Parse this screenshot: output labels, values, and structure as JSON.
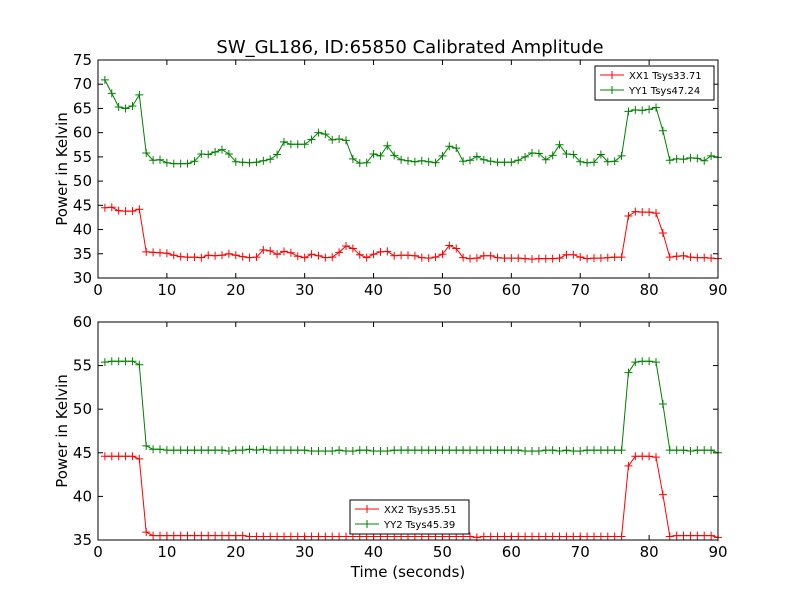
{
  "figure": {
    "title": "SW_GL186, ID:65850 Calibrated Amplitude"
  },
  "chart_data": [
    {
      "type": "line",
      "title": "SW_GL186, ID:65850 Calibrated Amplitude",
      "xlabel": "",
      "ylabel": "Power in Kelvin",
      "xlim": [
        0,
        90
      ],
      "ylim": [
        30,
        75
      ],
      "xticks": [
        0,
        10,
        20,
        30,
        40,
        50,
        60,
        70,
        80,
        90
      ],
      "yticks": [
        30,
        35,
        40,
        45,
        50,
        55,
        60,
        65,
        70,
        75
      ],
      "grid": false,
      "legend": "top-right",
      "marker": "+",
      "x": [
        1,
        2,
        3,
        4,
        5,
        6,
        7,
        8,
        9,
        10,
        11,
        12,
        13,
        14,
        15,
        16,
        17,
        18,
        19,
        20,
        21,
        22,
        23,
        24,
        25,
        26,
        27,
        28,
        29,
        30,
        31,
        32,
        33,
        34,
        35,
        36,
        37,
        38,
        39,
        40,
        41,
        42,
        43,
        44,
        45,
        46,
        47,
        48,
        49,
        50,
        51,
        52,
        53,
        54,
        55,
        56,
        57,
        58,
        59,
        60,
        61,
        62,
        63,
        64,
        65,
        66,
        67,
        68,
        69,
        70,
        71,
        72,
        73,
        74,
        75,
        76,
        77,
        78,
        79,
        80,
        81,
        82,
        83,
        84,
        85,
        86,
        87,
        88,
        89,
        90
      ],
      "series": [
        {
          "name": "XX1 Tsys33.71",
          "color": "#ff0000",
          "values": [
            44.5,
            44.6,
            43.9,
            43.8,
            43.8,
            44.2,
            35.4,
            35.3,
            35.2,
            35.1,
            34.7,
            34.4,
            34.3,
            34.3,
            34.2,
            34.7,
            34.6,
            34.7,
            35.0,
            34.7,
            34.4,
            34.2,
            34.3,
            35.8,
            35.6,
            34.9,
            35.5,
            35.2,
            34.5,
            34.2,
            34.9,
            34.6,
            34.2,
            34.3,
            35.3,
            36.6,
            36.1,
            34.8,
            34.2,
            34.9,
            35.4,
            35.5,
            34.6,
            34.7,
            34.7,
            34.6,
            34.2,
            34.1,
            34.3,
            34.9,
            36.7,
            36.1,
            34.2,
            34.0,
            34.1,
            34.6,
            34.6,
            34.2,
            34.1,
            34.1,
            34.1,
            34.0,
            33.9,
            34.0,
            34.0,
            34.0,
            34.1,
            34.8,
            34.8,
            34.3,
            34.0,
            34.1,
            34.1,
            34.2,
            34.3,
            34.3,
            42.8,
            43.7,
            43.6,
            43.6,
            43.4,
            39.3,
            34.3,
            34.5,
            34.6,
            34.3,
            34.2,
            34.2,
            34.1,
            34.0
          ]
        },
        {
          "name": "YY1 Tsys47.24",
          "color": "#008000",
          "values": [
            70.9,
            68.1,
            65.3,
            65.0,
            65.5,
            67.8,
            55.8,
            54.3,
            54.4,
            53.8,
            53.6,
            53.6,
            53.6,
            54.1,
            55.6,
            55.5,
            56.0,
            56.5,
            55.6,
            54.0,
            53.9,
            53.8,
            53.9,
            54.2,
            54.5,
            55.5,
            58.1,
            57.6,
            57.6,
            57.6,
            58.6,
            60.0,
            59.7,
            58.5,
            58.7,
            58.4,
            54.6,
            53.7,
            53.8,
            55.6,
            55.2,
            57.3,
            55.3,
            54.4,
            54.2,
            54.0,
            54.2,
            54.0,
            53.8,
            55.2,
            57.2,
            56.8,
            54.1,
            54.3,
            55.1,
            54.4,
            54.1,
            53.9,
            53.9,
            53.9,
            54.3,
            55.0,
            55.8,
            55.7,
            54.4,
            55.3,
            57.5,
            55.6,
            55.5,
            54.0,
            53.8,
            53.9,
            55.5,
            54.0,
            54.1,
            55.2,
            64.4,
            64.7,
            64.6,
            64.8,
            65.2,
            60.4,
            54.3,
            54.6,
            54.5,
            54.8,
            54.7,
            54.2,
            55.2,
            54.9
          ]
        }
      ]
    },
    {
      "type": "line",
      "title": "",
      "xlabel": "Time (seconds)",
      "ylabel": "Power in Kelvin",
      "xlim": [
        0,
        90
      ],
      "ylim": [
        35,
        60
      ],
      "xticks": [
        0,
        10,
        20,
        30,
        40,
        50,
        60,
        70,
        80,
        90
      ],
      "yticks": [
        35,
        40,
        45,
        50,
        55,
        60
      ],
      "grid": false,
      "legend": "lower-center",
      "marker": "+",
      "x": [
        1,
        2,
        3,
        4,
        5,
        6,
        7,
        8,
        9,
        10,
        11,
        12,
        13,
        14,
        15,
        16,
        17,
        18,
        19,
        20,
        21,
        22,
        23,
        24,
        25,
        26,
        27,
        28,
        29,
        30,
        31,
        32,
        33,
        34,
        35,
        36,
        37,
        38,
        39,
        40,
        41,
        42,
        43,
        44,
        45,
        46,
        47,
        48,
        49,
        50,
        51,
        52,
        53,
        54,
        55,
        56,
        57,
        58,
        59,
        60,
        61,
        62,
        63,
        64,
        65,
        66,
        67,
        68,
        69,
        70,
        71,
        72,
        73,
        74,
        75,
        76,
        77,
        78,
        79,
        80,
        81,
        82,
        83,
        84,
        85,
        86,
        87,
        88,
        89,
        90
      ],
      "series": [
        {
          "name": "XX2 Tsys35.51",
          "color": "#ff0000",
          "values": [
            44.6,
            44.6,
            44.6,
            44.6,
            44.6,
            44.3,
            35.9,
            35.5,
            35.5,
            35.5,
            35.5,
            35.5,
            35.5,
            35.5,
            35.5,
            35.5,
            35.5,
            35.5,
            35.5,
            35.5,
            35.5,
            35.4,
            35.4,
            35.4,
            35.4,
            35.4,
            35.4,
            35.4,
            35.4,
            35.4,
            35.4,
            35.4,
            35.4,
            35.4,
            35.4,
            35.4,
            35.4,
            35.4,
            35.4,
            35.4,
            35.4,
            35.4,
            35.4,
            35.4,
            35.4,
            35.4,
            35.4,
            35.4,
            35.4,
            35.4,
            35.4,
            35.4,
            35.4,
            35.4,
            35.3,
            35.4,
            35.4,
            35.4,
            35.4,
            35.4,
            35.4,
            35.4,
            35.4,
            35.4,
            35.4,
            35.4,
            35.4,
            35.4,
            35.4,
            35.4,
            35.4,
            35.4,
            35.4,
            35.4,
            35.4,
            35.4,
            43.5,
            44.6,
            44.6,
            44.6,
            44.5,
            40.2,
            35.4,
            35.5,
            35.5,
            35.5,
            35.5,
            35.5,
            35.5,
            35.3
          ]
        },
        {
          "name": "YY2 Tsys45.39",
          "color": "#008000",
          "values": [
            55.4,
            55.5,
            55.5,
            55.5,
            55.5,
            55.1,
            45.8,
            45.4,
            45.4,
            45.3,
            45.3,
            45.3,
            45.3,
            45.3,
            45.3,
            45.3,
            45.3,
            45.3,
            45.2,
            45.3,
            45.3,
            45.4,
            45.3,
            45.4,
            45.3,
            45.3,
            45.3,
            45.3,
            45.3,
            45.3,
            45.2,
            45.2,
            45.2,
            45.2,
            45.3,
            45.2,
            45.2,
            45.3,
            45.3,
            45.2,
            45.2,
            45.2,
            45.3,
            45.3,
            45.3,
            45.3,
            45.3,
            45.3,
            45.3,
            45.3,
            45.3,
            45.3,
            45.3,
            45.3,
            45.3,
            45.3,
            45.3,
            45.3,
            45.3,
            45.3,
            45.3,
            45.2,
            45.2,
            45.2,
            45.3,
            45.3,
            45.2,
            45.3,
            45.2,
            45.2,
            45.3,
            45.3,
            45.3,
            45.3,
            45.3,
            45.3,
            54.2,
            55.4,
            55.5,
            55.5,
            55.4,
            50.6,
            45.3,
            45.3,
            45.3,
            45.2,
            45.3,
            45.3,
            45.3,
            45.0
          ]
        }
      ]
    }
  ]
}
